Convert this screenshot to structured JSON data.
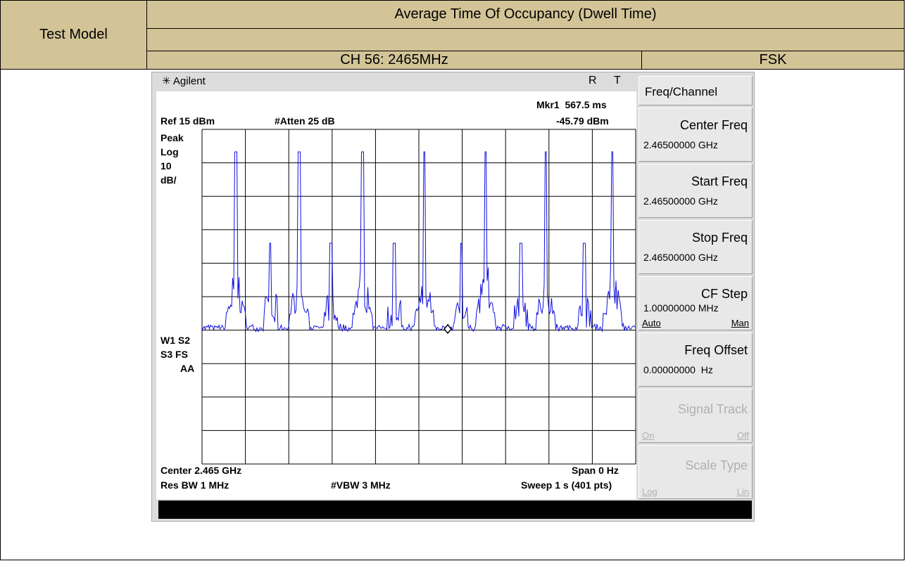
{
  "header": {
    "test_model": "Test Model",
    "title": "Average Time Of Occupancy (Dwell Time)",
    "channel": "CH 56: 2465MHz",
    "modulation": "FSK"
  },
  "analyzer": {
    "brand": "Agilent",
    "status": [
      "R",
      "T"
    ],
    "marker": "Mkr1  567.5 ms",
    "marker_level": "-45.79 dBm",
    "ref": "Ref 15 dBm",
    "atten": "#Atten 25 dB",
    "left_labels": [
      "Peak",
      "Log",
      "10",
      "dB/"
    ],
    "mode_labels": [
      "W1 S2",
      "S3 FS",
      "AA"
    ],
    "center": "Center 2.465 GHz",
    "span": "Span 0 Hz",
    "rbw": "Res BW 1 MHz",
    "vbw": "#VBW 3 MHz",
    "sweep": "Sweep 1 s (401 pts)"
  },
  "softkeys": {
    "menu": "Freq/Channel",
    "keys": [
      {
        "title": "Center Freq",
        "value": "2.46500000 GHz"
      },
      {
        "title": "Start Freq",
        "value": "2.46500000 GHz"
      },
      {
        "title": "Stop Freq",
        "value": "2.46500000 GHz"
      },
      {
        "title": "CF Step",
        "value": "1.00000000 MHz",
        "options": [
          "Auto",
          "Man"
        ]
      },
      {
        "title": "Freq Offset",
        "value": "0.00000000  Hz"
      },
      {
        "title": "Signal Track",
        "options": [
          "On",
          "Off"
        ]
      },
      {
        "title": "Scale Type",
        "options": [
          "Log",
          "Lin"
        ]
      }
    ]
  }
}
